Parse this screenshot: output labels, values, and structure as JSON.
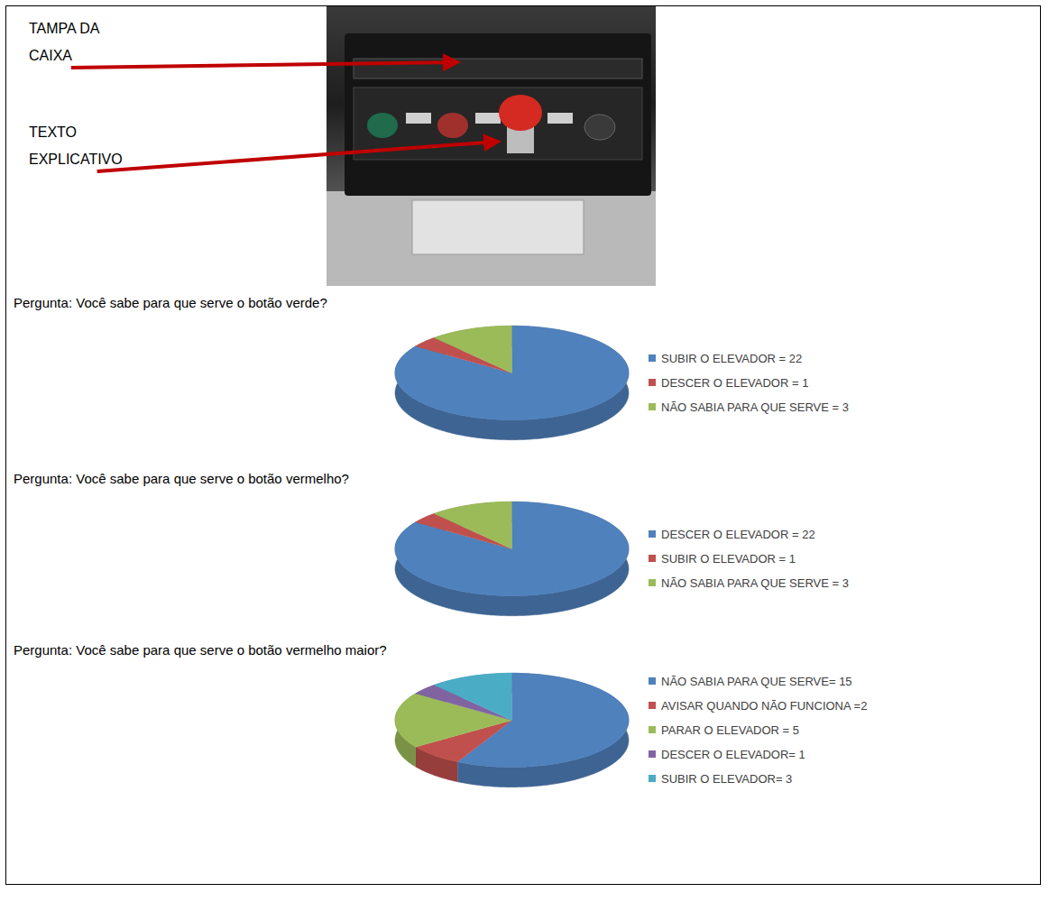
{
  "figure": {
    "annotations": [
      "TAMPA DA CAIXA",
      "TEXTO EXPLICATIVO"
    ]
  },
  "chart_data": [
    {
      "type": "pie",
      "title": "Pergunta: Você sabe para que serve o botão verde?",
      "categories": [
        "SUBIR O ELEVADOR = 22",
        "DESCER O ELEVADOR = 1",
        "NÃO SABIA PARA QUE SERVE = 3"
      ],
      "values": [
        22,
        1,
        3
      ],
      "colors": [
        "#4f81bd",
        "#c0504d",
        "#9bbb59"
      ],
      "legend": "right"
    },
    {
      "type": "pie",
      "title": "Pergunta: Você sabe para que serve o botão vermelho?",
      "categories": [
        "DESCER O ELEVADOR = 22",
        "SUBIR O ELEVADOR = 1",
        "NÃO SABIA PARA QUE SERVE = 3"
      ],
      "values": [
        22,
        1,
        3
      ],
      "colors": [
        "#4f81bd",
        "#c0504d",
        "#9bbb59"
      ],
      "legend": "right"
    },
    {
      "type": "pie",
      "title": "Pergunta: Você sabe para que serve o botão vermelho maior?",
      "categories": [
        "NÃO SABIA PARA QUE SERVE= 15",
        "AVISAR QUANDO NÃO FUNCIONA =2",
        "PARAR O ELEVADOR = 5",
        "DESCER O ELEVADOR= 1",
        "SUBIR O ELEVADOR= 3"
      ],
      "values": [
        15,
        2,
        5,
        1,
        3
      ],
      "colors": [
        "#4f81bd",
        "#c0504d",
        "#9bbb59",
        "#8064a2",
        "#4bacc6"
      ],
      "legend": "right"
    }
  ]
}
